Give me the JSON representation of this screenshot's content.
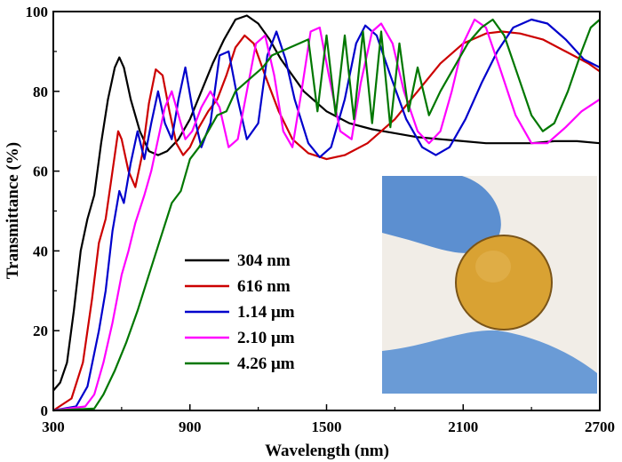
{
  "chart_data": {
    "type": "line",
    "xlabel": "Wavelength (nm)",
    "ylabel": "Transmittance (%)",
    "xlim": [
      300,
      2700
    ],
    "ylim": [
      0,
      100
    ],
    "xticks": [
      300,
      900,
      1500,
      2100,
      2700
    ],
    "yticks": [
      0,
      20,
      40,
      60,
      80,
      100
    ],
    "grid": false,
    "legend_position": "lower-left",
    "series": [
      {
        "name": "304 nm",
        "color": "#000000",
        "points": [
          [
            300,
            5
          ],
          [
            330,
            7
          ],
          [
            360,
            12
          ],
          [
            390,
            25
          ],
          [
            420,
            40
          ],
          [
            450,
            48
          ],
          [
            480,
            54
          ],
          [
            510,
            67
          ],
          [
            540,
            78
          ],
          [
            570,
            86
          ],
          [
            590,
            88.5
          ],
          [
            610,
            86
          ],
          [
            640,
            78
          ],
          [
            680,
            70
          ],
          [
            720,
            65
          ],
          [
            760,
            64
          ],
          [
            800,
            65
          ],
          [
            850,
            68
          ],
          [
            900,
            73
          ],
          [
            950,
            80
          ],
          [
            1000,
            87
          ],
          [
            1050,
            93
          ],
          [
            1100,
            98
          ],
          [
            1150,
            99
          ],
          [
            1200,
            97
          ],
          [
            1250,
            93
          ],
          [
            1300,
            88
          ],
          [
            1400,
            80
          ],
          [
            1500,
            75
          ],
          [
            1600,
            72
          ],
          [
            1700,
            70.5
          ],
          [
            1800,
            69.5
          ],
          [
            1900,
            68.5
          ],
          [
            2000,
            68
          ],
          [
            2100,
            67.5
          ],
          [
            2200,
            67
          ],
          [
            2300,
            67
          ],
          [
            2400,
            67
          ],
          [
            2500,
            67.5
          ],
          [
            2600,
            67.5
          ],
          [
            2700,
            67
          ]
        ]
      },
      {
        "name": "616 nm",
        "color": "#cc0000",
        "points": [
          [
            300,
            0
          ],
          [
            380,
            3
          ],
          [
            430,
            12
          ],
          [
            470,
            28
          ],
          [
            500,
            42
          ],
          [
            530,
            48
          ],
          [
            560,
            60
          ],
          [
            585,
            70
          ],
          [
            600,
            68
          ],
          [
            630,
            60
          ],
          [
            660,
            56
          ],
          [
            690,
            64
          ],
          [
            720,
            77
          ],
          [
            750,
            85.5
          ],
          [
            780,
            84
          ],
          [
            810,
            75
          ],
          [
            840,
            67
          ],
          [
            870,
            64
          ],
          [
            900,
            66
          ],
          [
            940,
            71
          ],
          [
            980,
            75
          ],
          [
            1020,
            78
          ],
          [
            1060,
            84
          ],
          [
            1100,
            91
          ],
          [
            1140,
            94
          ],
          [
            1180,
            92
          ],
          [
            1230,
            84
          ],
          [
            1290,
            75
          ],
          [
            1350,
            68
          ],
          [
            1420,
            64.5
          ],
          [
            1500,
            63
          ],
          [
            1580,
            64
          ],
          [
            1680,
            67
          ],
          [
            1800,
            73
          ],
          [
            1900,
            80
          ],
          [
            2000,
            87
          ],
          [
            2100,
            92
          ],
          [
            2200,
            94.5
          ],
          [
            2270,
            95
          ],
          [
            2350,
            94.5
          ],
          [
            2450,
            93
          ],
          [
            2550,
            90
          ],
          [
            2650,
            87
          ],
          [
            2700,
            85
          ]
        ]
      },
      {
        "name": "1.14 μm",
        "color": "#0000cc",
        "points": [
          [
            300,
            0
          ],
          [
            400,
            1
          ],
          [
            450,
            6
          ],
          [
            500,
            20
          ],
          [
            530,
            30
          ],
          [
            560,
            45
          ],
          [
            590,
            55
          ],
          [
            610,
            52
          ],
          [
            640,
            62
          ],
          [
            670,
            70
          ],
          [
            700,
            63
          ],
          [
            730,
            72
          ],
          [
            760,
            80
          ],
          [
            790,
            72
          ],
          [
            820,
            68
          ],
          [
            850,
            78
          ],
          [
            880,
            86
          ],
          [
            910,
            76
          ],
          [
            950,
            66
          ],
          [
            990,
            72
          ],
          [
            1030,
            89
          ],
          [
            1070,
            90
          ],
          [
            1110,
            78
          ],
          [
            1150,
            68
          ],
          [
            1200,
            72
          ],
          [
            1240,
            89
          ],
          [
            1280,
            95
          ],
          [
            1320,
            88
          ],
          [
            1360,
            78
          ],
          [
            1420,
            67
          ],
          [
            1470,
            63.5
          ],
          [
            1520,
            66
          ],
          [
            1580,
            78
          ],
          [
            1630,
            92
          ],
          [
            1670,
            96.5
          ],
          [
            1720,
            94
          ],
          [
            1780,
            84
          ],
          [
            1850,
            73
          ],
          [
            1920,
            66
          ],
          [
            1980,
            64
          ],
          [
            2040,
            66
          ],
          [
            2110,
            73
          ],
          [
            2180,
            82
          ],
          [
            2250,
            90
          ],
          [
            2320,
            96
          ],
          [
            2400,
            98
          ],
          [
            2470,
            97
          ],
          [
            2550,
            93
          ],
          [
            2630,
            88
          ],
          [
            2700,
            86
          ]
        ]
      },
      {
        "name": "2.10 μm",
        "color": "#ff00ff",
        "points": [
          [
            300,
            0
          ],
          [
            440,
            1
          ],
          [
            480,
            4
          ],
          [
            520,
            12
          ],
          [
            560,
            22
          ],
          [
            600,
            34
          ],
          [
            630,
            40
          ],
          [
            660,
            47
          ],
          [
            700,
            54
          ],
          [
            730,
            60
          ],
          [
            760,
            68
          ],
          [
            790,
            76
          ],
          [
            820,
            80
          ],
          [
            850,
            74
          ],
          [
            880,
            68
          ],
          [
            910,
            70
          ],
          [
            950,
            76
          ],
          [
            990,
            80
          ],
          [
            1030,
            76
          ],
          [
            1070,
            66
          ],
          [
            1110,
            68
          ],
          [
            1150,
            80
          ],
          [
            1190,
            92
          ],
          [
            1230,
            94
          ],
          [
            1270,
            84
          ],
          [
            1310,
            70
          ],
          [
            1350,
            66
          ],
          [
            1390,
            80
          ],
          [
            1430,
            95
          ],
          [
            1470,
            96
          ],
          [
            1510,
            84
          ],
          [
            1560,
            70
          ],
          [
            1610,
            68
          ],
          [
            1650,
            82
          ],
          [
            1700,
            95
          ],
          [
            1740,
            97
          ],
          [
            1790,
            92
          ],
          [
            1840,
            80
          ],
          [
            1900,
            70
          ],
          [
            1950,
            67
          ],
          [
            2000,
            70
          ],
          [
            2050,
            80
          ],
          [
            2100,
            92
          ],
          [
            2150,
            98
          ],
          [
            2200,
            96
          ],
          [
            2260,
            86
          ],
          [
            2330,
            74
          ],
          [
            2400,
            67
          ],
          [
            2470,
            67
          ],
          [
            2550,
            71
          ],
          [
            2620,
            75
          ],
          [
            2700,
            78
          ]
        ]
      },
      {
        "name": "4.26 μm",
        "color": "#007700",
        "points": [
          [
            300,
            0
          ],
          [
            480,
            0.5
          ],
          [
            520,
            4
          ],
          [
            570,
            10
          ],
          [
            620,
            17
          ],
          [
            670,
            25
          ],
          [
            720,
            34
          ],
          [
            770,
            43
          ],
          [
            820,
            52
          ],
          [
            860,
            55
          ],
          [
            900,
            63
          ],
          [
            940,
            66
          ],
          [
            980,
            70
          ],
          [
            1020,
            74
          ],
          [
            1060,
            75
          ],
          [
            1100,
            80
          ],
          [
            1140,
            82
          ],
          [
            1180,
            84
          ],
          [
            1220,
            86
          ],
          [
            1260,
            89
          ],
          [
            1300,
            90
          ],
          [
            1340,
            91
          ],
          [
            1380,
            92
          ],
          [
            1420,
            93
          ],
          [
            1460,
            75
          ],
          [
            1500,
            94
          ],
          [
            1540,
            74
          ],
          [
            1580,
            94
          ],
          [
            1620,
            73
          ],
          [
            1660,
            95
          ],
          [
            1700,
            72
          ],
          [
            1740,
            95
          ],
          [
            1780,
            71
          ],
          [
            1820,
            92
          ],
          [
            1860,
            75
          ],
          [
            1900,
            86
          ],
          [
            1950,
            74
          ],
          [
            2000,
            80
          ],
          [
            2060,
            86
          ],
          [
            2120,
            92
          ],
          [
            2180,
            96
          ],
          [
            2230,
            98
          ],
          [
            2280,
            94
          ],
          [
            2340,
            84
          ],
          [
            2400,
            74
          ],
          [
            2450,
            70
          ],
          [
            2500,
            72
          ],
          [
            2560,
            80
          ],
          [
            2620,
            90
          ],
          [
            2660,
            96
          ],
          [
            2700,
            98
          ]
        ]
      }
    ]
  },
  "colors": {
    "axis": "#000000",
    "photo_background": "#f1ede7",
    "glove": "#5c8fd0",
    "disc": "#d9a233"
  }
}
